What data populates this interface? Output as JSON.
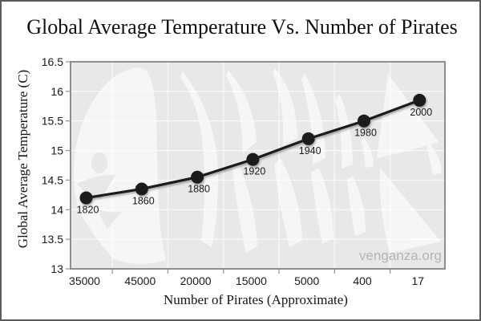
{
  "chart_data": {
    "type": "line",
    "title": "Global Average Temperature Vs. Number of Pirates",
    "xlabel": "Number of Pirates (Approximate)",
    "ylabel": "Global Average Temperature (C)",
    "categories": [
      "35000",
      "45000",
      "20000",
      "15000",
      "5000",
      "400",
      "17"
    ],
    "series": [
      {
        "values": [
          14.2,
          14.35,
          14.55,
          14.85,
          15.2,
          15.5,
          15.85
        ],
        "point_labels": [
          "1820",
          "1860",
          "1880",
          "1920",
          "1940",
          "1980",
          "2000"
        ]
      }
    ],
    "ylim": [
      13,
      16.5
    ],
    "ytick_step": 0.5,
    "grid": true,
    "legend": "none",
    "watermark": "venganza.org"
  },
  "colors": {
    "line": "#1f1f1f",
    "marker": "#1f1f1f",
    "plot_background": "#e8e8e8",
    "gridline": "#f8f8f8",
    "plot_border": "#8f8f8f",
    "frame_border": "#5a5a5a",
    "tick": "#999999",
    "watermark_fill": "#ffffff",
    "watermark_text": "#b5b5b5",
    "label_text": "#1a1a1a"
  }
}
